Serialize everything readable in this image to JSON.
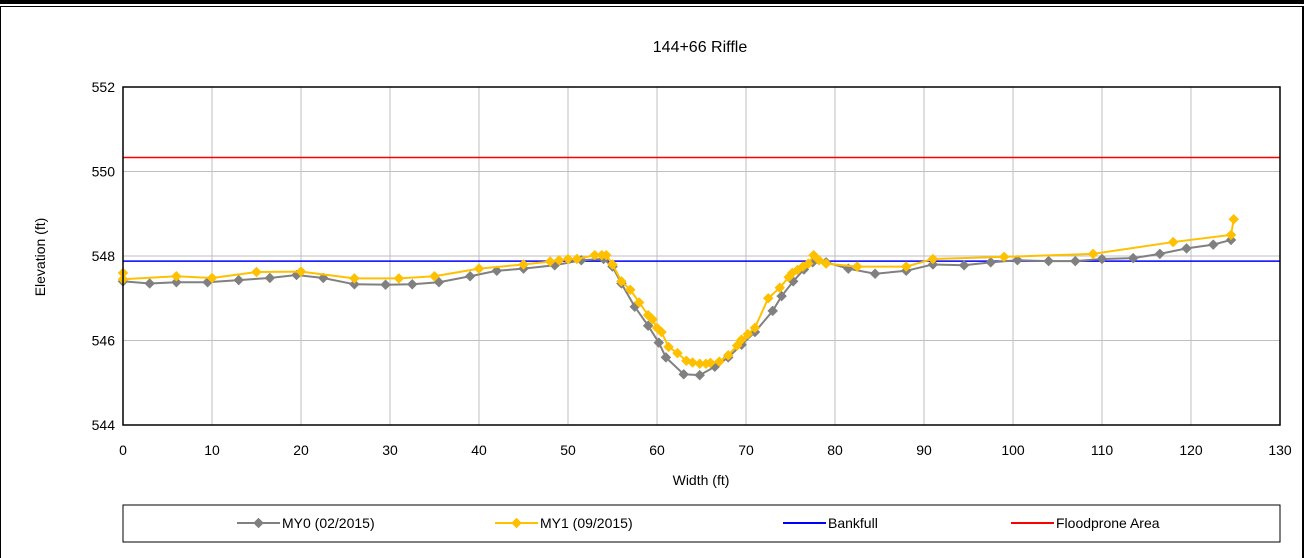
{
  "chart_data": {
    "type": "line",
    "title": "144+66 Riffle",
    "xlabel": "Width (ft)",
    "ylabel": "Elevation (ft)",
    "xlim": [
      0,
      130
    ],
    "ylim": [
      544,
      552
    ],
    "xticks": [
      0,
      10,
      20,
      30,
      40,
      50,
      60,
      70,
      80,
      90,
      100,
      110,
      120,
      130
    ],
    "yticks": [
      544,
      546,
      548,
      550,
      552
    ],
    "grid": true,
    "legend_position": "bottom",
    "series": [
      {
        "name": "MY0 (02/2015)",
        "color": "#808080",
        "marker": "diamond",
        "points": [
          [
            0,
            547.4
          ],
          [
            3,
            547.35
          ],
          [
            6,
            547.38
          ],
          [
            9.5,
            547.38
          ],
          [
            13,
            547.43
          ],
          [
            16.5,
            547.48
          ],
          [
            19.5,
            547.55
          ],
          [
            22.5,
            547.48
          ],
          [
            26,
            547.33
          ],
          [
            29.5,
            547.32
          ],
          [
            32.5,
            547.33
          ],
          [
            35.5,
            547.38
          ],
          [
            39,
            547.52
          ],
          [
            42,
            547.65
          ],
          [
            45,
            547.7
          ],
          [
            48.5,
            547.78
          ],
          [
            51.5,
            547.9
          ],
          [
            54,
            547.93
          ],
          [
            55,
            547.75
          ],
          [
            56,
            547.35
          ],
          [
            57.5,
            546.8
          ],
          [
            59,
            546.35
          ],
          [
            60.2,
            545.95
          ],
          [
            61,
            545.6
          ],
          [
            63,
            545.2
          ],
          [
            64.8,
            545.18
          ],
          [
            66.5,
            545.38
          ],
          [
            68,
            545.6
          ],
          [
            69.5,
            545.9
          ],
          [
            71,
            546.2
          ],
          [
            73,
            546.7
          ],
          [
            74,
            547.05
          ],
          [
            75.3,
            547.4
          ],
          [
            76.5,
            547.68
          ],
          [
            77.5,
            547.85
          ],
          [
            79,
            547.85
          ],
          [
            81.5,
            547.7
          ],
          [
            84.5,
            547.58
          ],
          [
            88,
            547.65
          ],
          [
            91,
            547.8
          ],
          [
            94.5,
            547.78
          ],
          [
            97.5,
            547.85
          ],
          [
            100.5,
            547.9
          ],
          [
            104,
            547.88
          ],
          [
            107,
            547.88
          ],
          [
            110,
            547.93
          ],
          [
            113.5,
            547.95
          ],
          [
            116.5,
            548.05
          ],
          [
            119.5,
            548.18
          ],
          [
            122.5,
            548.27
          ],
          [
            124.5,
            548.38
          ]
        ]
      },
      {
        "name": "MY1 (09/2015)",
        "color": "#FFC000",
        "marker": "diamond",
        "points": [
          [
            0,
            547.6
          ],
          [
            0,
            547.45
          ],
          [
            6,
            547.52
          ],
          [
            10,
            547.48
          ],
          [
            15,
            547.62
          ],
          [
            20,
            547.63
          ],
          [
            26,
            547.47
          ],
          [
            31,
            547.47
          ],
          [
            35,
            547.52
          ],
          [
            40,
            547.7
          ],
          [
            45,
            547.8
          ],
          [
            48,
            547.87
          ],
          [
            49,
            547.9
          ],
          [
            50,
            547.93
          ],
          [
            51,
            547.93
          ],
          [
            53,
            548.02
          ],
          [
            53.8,
            548.02
          ],
          [
            54.3,
            548.02
          ],
          [
            55,
            547.8
          ],
          [
            56,
            547.4
          ],
          [
            57,
            547.2
          ],
          [
            58,
            546.9
          ],
          [
            59,
            546.6
          ],
          [
            59.5,
            546.5
          ],
          [
            60,
            546.3
          ],
          [
            60.5,
            546.2
          ],
          [
            61.3,
            545.85
          ],
          [
            62.3,
            545.7
          ],
          [
            63.3,
            545.52
          ],
          [
            64,
            545.48
          ],
          [
            64.8,
            545.45
          ],
          [
            65.5,
            545.45
          ],
          [
            66,
            545.47
          ],
          [
            67,
            545.5
          ],
          [
            68,
            545.65
          ],
          [
            69,
            545.88
          ],
          [
            69.5,
            546.02
          ],
          [
            70.2,
            546.15
          ],
          [
            71,
            546.3
          ],
          [
            72.5,
            547.0
          ],
          [
            73.8,
            547.25
          ],
          [
            74.8,
            547.5
          ],
          [
            75.2,
            547.6
          ],
          [
            75.8,
            547.67
          ],
          [
            76.4,
            547.75
          ],
          [
            77,
            547.82
          ],
          [
            77.6,
            548.02
          ],
          [
            78.2,
            547.9
          ],
          [
            79,
            547.82
          ],
          [
            82.5,
            547.75
          ],
          [
            88,
            547.75
          ],
          [
            91,
            547.93
          ],
          [
            99,
            547.98
          ],
          [
            109,
            548.05
          ],
          [
            118,
            548.33
          ],
          [
            124.5,
            548.5
          ],
          [
            124.8,
            548.87
          ]
        ]
      },
      {
        "name": "Bankfull",
        "color": "#0000FF",
        "marker": "none",
        "points": [
          [
            0,
            547.88
          ],
          [
            130,
            547.88
          ]
        ]
      },
      {
        "name": "Floodprone Area",
        "color": "#FF0000",
        "marker": "none",
        "points": [
          [
            0,
            550.33
          ],
          [
            130,
            550.33
          ]
        ]
      }
    ]
  }
}
